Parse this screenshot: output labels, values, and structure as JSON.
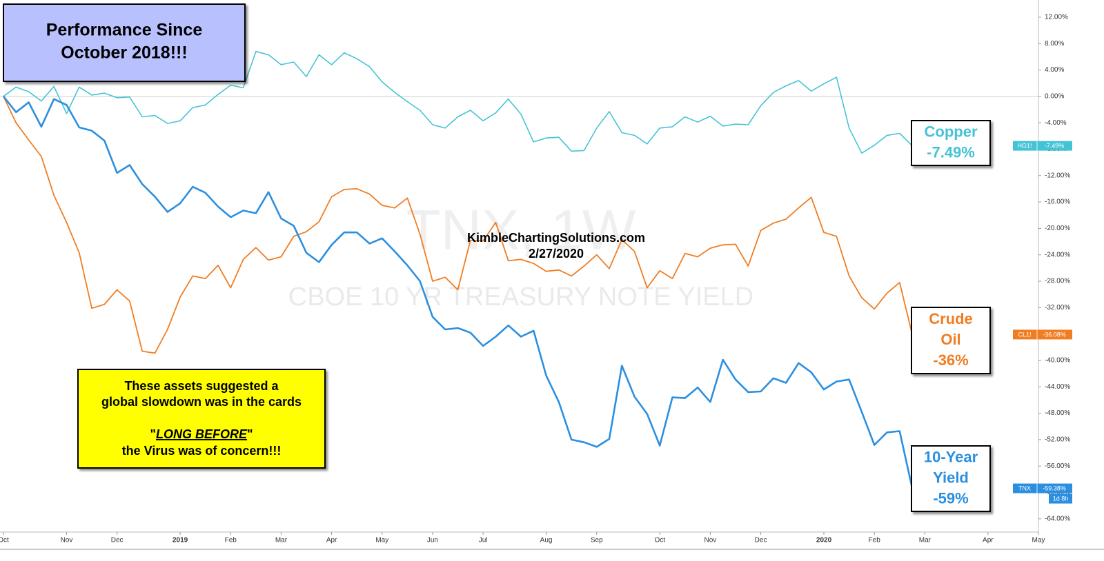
{
  "chart_data": {
    "type": "line",
    "title_lines": [
      "Performance Since",
      "October 2018!!!"
    ],
    "watermark": [
      "TNX, 1W",
      "CBOE 10 YR TREASURY NOTE YIELD"
    ],
    "source": [
      "KimbleChartingSolutions.com",
      "2/27/2020"
    ],
    "note": {
      "lines": [
        "These assets suggested a",
        "global slowdown was in the cards"
      ],
      "emphasis": [
        "\"",
        "LONG BEFORE",
        "\""
      ],
      "closing": "the Virus was of concern!!!"
    },
    "categories": [
      "Oct",
      null,
      null,
      null,
      null,
      "Nov",
      null,
      null,
      null,
      "Dec",
      null,
      null,
      null,
      null,
      "2019",
      null,
      null,
      null,
      "Feb",
      null,
      null,
      null,
      "Mar",
      null,
      null,
      null,
      "Apr",
      null,
      null,
      null,
      "May",
      null,
      null,
      null,
      "Jun",
      null,
      null,
      null,
      "Jul",
      null,
      null,
      null,
      null,
      "Aug",
      null,
      null,
      null,
      "Sep",
      null,
      null,
      null,
      null,
      "Oct",
      null,
      null,
      null,
      "Nov",
      null,
      null,
      null,
      "Dec",
      null,
      null,
      null,
      null,
      "2020",
      null,
      null,
      null,
      "Feb",
      null,
      null,
      null,
      "Mar",
      null,
      null,
      null,
      null,
      "Apr",
      null,
      null,
      null,
      "May"
    ],
    "series": [
      {
        "name": "Copper",
        "label_lines": [
          "Copper"
        ],
        "symbol": "HG1!",
        "color": "#45c3d6",
        "box_value_label": "-7.49%",
        "tag_value_label": "-7.49%",
        "values": [
          0,
          1.4,
          0.7,
          -0.7,
          1.5,
          -2.6,
          1.4,
          0.2,
          0.5,
          -0.2,
          -0.1,
          -3.1,
          -2.9,
          -4.1,
          -3.7,
          -1.7,
          -1.3,
          0.3,
          1.7,
          1.3,
          6.8,
          6.3,
          4.8,
          5.2,
          3.0,
          6.3,
          4.8,
          6.6,
          5.7,
          4.5,
          2.2,
          0.6,
          -0.8,
          -2.1,
          -4.3,
          -4.8,
          -3.1,
          -2.1,
          -3.7,
          -2.5,
          -0.4,
          -2.7,
          -6.9,
          -6.3,
          -6.2,
          -8.3,
          -8.2,
          -4.8,
          -2.3,
          -5.5,
          -5.9,
          -7.2,
          -4.8,
          -4.6,
          -3.1,
          -3.9,
          -3.0,
          -4.5,
          -4.2,
          -4.3,
          -1.4,
          0.6,
          1.6,
          2.4,
          0.8,
          1.9,
          2.9,
          -4.8,
          -8.6,
          -7.4,
          -5.9,
          -5.6,
          -7.49,
          null,
          null,
          null,
          null,
          null,
          null,
          null,
          null,
          null,
          null
        ]
      },
      {
        "name": "Crude Oil",
        "label_lines": [
          "Crude",
          "Oil"
        ],
        "symbol": "CL1!",
        "color": "#f07d22",
        "box_value_label": "-36%",
        "tag_value_label": "-36.08%",
        "values": [
          0,
          -4.0,
          -6.6,
          -9.1,
          -15.0,
          -19.1,
          -23.7,
          -32.1,
          -31.5,
          -29.3,
          -31.0,
          -38.6,
          -38.9,
          -35.3,
          -30.4,
          -27.2,
          -27.6,
          -25.6,
          -29.0,
          -24.7,
          -22.9,
          -24.8,
          -24.3,
          -21.2,
          -20.5,
          -19.0,
          -15.2,
          -14.1,
          -14.0,
          -14.8,
          -16.5,
          -16.9,
          -15.4,
          -20.9,
          -28.0,
          -27.4,
          -29.3,
          -21.8,
          -21.9,
          -19.1,
          -24.9,
          -24.7,
          -25.3,
          -26.5,
          -26.3,
          -27.2,
          -25.7,
          -24.0,
          -26.1,
          -21.7,
          -23.5,
          -29.0,
          -26.4,
          -27.6,
          -23.8,
          -24.3,
          -23.0,
          -22.5,
          -22.4,
          -25.7,
          -20.3,
          -19.2,
          -18.6,
          -16.9,
          -15.3,
          -20.6,
          -21.2,
          -27.2,
          -30.5,
          -32.2,
          -29.8,
          -28.2,
          -36.08,
          null,
          null,
          null,
          null,
          null,
          null,
          null,
          null,
          null,
          null
        ]
      },
      {
        "name": "10-Year Yield",
        "label_lines": [
          "10-Year",
          "Yield"
        ],
        "symbol": "TNX",
        "color": "#2b8fe0",
        "box_value_label": "-59%",
        "tag_value_label": "-59.38%",
        "values": [
          0,
          -2.4,
          -0.9,
          -4.6,
          -0.4,
          -1.3,
          -4.7,
          -5.2,
          -6.7,
          -11.6,
          -10.4,
          -13.3,
          -15.2,
          -17.5,
          -16.2,
          -13.7,
          -14.6,
          -16.7,
          -18.3,
          -17.3,
          -17.7,
          -14.5,
          -18.5,
          -19.6,
          -23.7,
          -25.1,
          -22.5,
          -20.6,
          -20.6,
          -22.3,
          -21.5,
          -23.5,
          -25.6,
          -28.0,
          -33.4,
          -35.3,
          -35.1,
          -35.8,
          -37.8,
          -36.4,
          -34.7,
          -36.4,
          -35.5,
          -42.3,
          -46.3,
          -52.0,
          -52.4,
          -53.1,
          -51.9,
          -40.8,
          -45.5,
          -48.1,
          -52.9,
          -45.6,
          -45.7,
          -44.1,
          -46.3,
          -39.9,
          -42.9,
          -44.8,
          -44.7,
          -42.7,
          -43.4,
          -40.4,
          -41.8,
          -44.4,
          -43.2,
          -42.9,
          -47.8,
          -52.8,
          -50.9,
          -50.7,
          -59.38,
          null,
          null,
          null,
          null,
          null,
          null,
          null,
          null,
          null,
          null
        ]
      }
    ],
    "ylim": [
      -66,
      14.6
    ],
    "yticks": [
      {
        "value": 12,
        "label": "12.00%"
      },
      {
        "value": 8,
        "label": "8.00%"
      },
      {
        "value": 4,
        "label": "4.00%"
      },
      {
        "value": 0,
        "label": "0.00%"
      },
      {
        "value": -4,
        "label": "-4.00%"
      },
      {
        "value": -8,
        "label": "-8.00%"
      },
      {
        "value": -12,
        "label": "-12.00%"
      },
      {
        "value": -16,
        "label": "-16.00%"
      },
      {
        "value": -20,
        "label": "-20.00%"
      },
      {
        "value": -24,
        "label": "-24.00%"
      },
      {
        "value": -28,
        "label": "-28.00%"
      },
      {
        "value": -32,
        "label": "-32.00%"
      },
      {
        "value": -36,
        "label": "-36.00%"
      },
      {
        "value": -40,
        "label": "-40.00%"
      },
      {
        "value": -44,
        "label": "-44.00%"
      },
      {
        "value": -48,
        "label": "-48.00%"
      },
      {
        "value": -52,
        "label": "-52.00%"
      },
      {
        "value": -56,
        "label": "-56.00%"
      },
      {
        "value": -60,
        "label": "-60.00%"
      },
      {
        "value": -64,
        "label": "-64.00%"
      }
    ],
    "zero_line": true,
    "countdown": "1d 8h"
  }
}
